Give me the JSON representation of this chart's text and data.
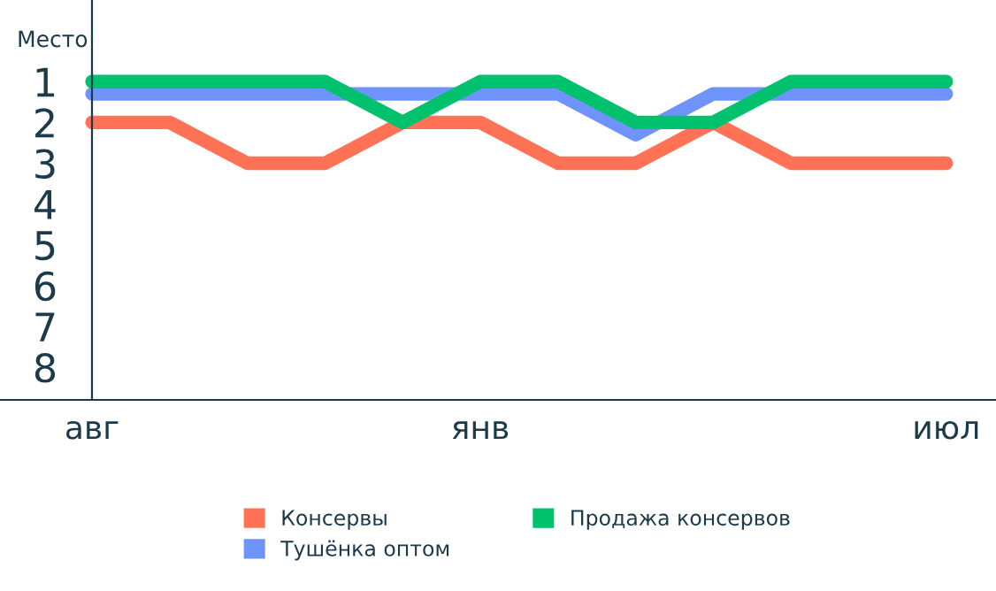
{
  "chart_data": {
    "type": "line",
    "ylabel": "Место",
    "categories": [
      "авг",
      null,
      null,
      null,
      null,
      "янв",
      null,
      null,
      null,
      null,
      null,
      "июл"
    ],
    "series": [
      {
        "name": "Консервы",
        "color": "#ff7256",
        "values": [
          2,
          2,
          3,
          3,
          2,
          2,
          3,
          3,
          2,
          3,
          3,
          3
        ]
      },
      {
        "name": "Тушёнка оптом",
        "color": "#6e94fb",
        "values": [
          1.3,
          1.3,
          1.3,
          1.3,
          1.3,
          1.3,
          1.3,
          2.3,
          1.3,
          1.3,
          1.3,
          1.3
        ]
      },
      {
        "name": "Продажа консервов",
        "color": "#00c16e",
        "values": [
          1,
          1,
          1,
          1,
          2,
          1,
          1,
          2,
          2,
          1,
          1,
          1
        ]
      }
    ],
    "ylim": [
      8.8,
      -1.0
    ],
    "yticks": [
      1,
      2,
      3,
      4,
      5,
      6,
      7,
      8
    ],
    "grid": false,
    "legend": "bottom",
    "marker": "none",
    "line_style": "solid"
  }
}
